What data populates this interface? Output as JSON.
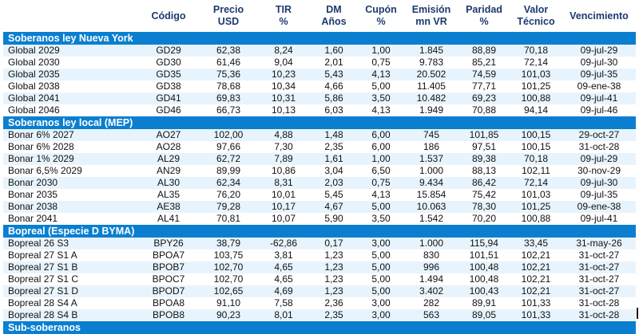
{
  "headers": [
    "",
    "Código",
    "Precio|USD",
    "TIR|%",
    "DM|Años",
    "Cupón|%",
    "Emisión|mn VR",
    "Paridad|%",
    "Valor|Técnico",
    "Vencimiento"
  ],
  "sections": [
    {
      "title": "Soberanos ley Nueva York",
      "rows": [
        [
          "Global 2029",
          "GD29",
          "62,38",
          "8,24",
          "1,60",
          "1,00",
          "1.845",
          "88,89",
          "70,18",
          "09-jul-29"
        ],
        [
          "Global 2030",
          "GD30",
          "61,46",
          "9,04",
          "2,01",
          "0,75",
          "9.783",
          "85,21",
          "72,14",
          "09-jul-30"
        ],
        [
          "Global 2035",
          "GD35",
          "75,36",
          "10,23",
          "5,43",
          "4,13",
          "20.502",
          "74,59",
          "101,03",
          "09-jul-35"
        ],
        [
          "Global 2038",
          "GD38",
          "78,68",
          "10,34",
          "4,66",
          "5,00",
          "11.405",
          "77,71",
          "101,25",
          "09-ene-38"
        ],
        [
          "Global 2041",
          "GD41",
          "69,83",
          "10,31",
          "5,86",
          "3,50",
          "10.482",
          "69,23",
          "100,88",
          "09-jul-41"
        ],
        [
          "Global 2046",
          "GD46",
          "66,73",
          "10,13",
          "6,03",
          "4,13",
          "1.949",
          "70,88",
          "94,14",
          "09-jul-46"
        ]
      ]
    },
    {
      "title": "Soberanos ley local (MEP)",
      "rows": [
        [
          "Bonar 6% 2027",
          "AO27",
          "102,00",
          "4,88",
          "1,48",
          "6,00",
          "745",
          "101,85",
          "100,15",
          "29-oct-27"
        ],
        [
          "Bonar 6% 2028",
          "AO28",
          "97,66",
          "7,30",
          "2,35",
          "6,00",
          "186",
          "97,51",
          "100,15",
          "31-oct-28"
        ],
        [
          "Bonar 1% 2029",
          "AL29",
          "62,72",
          "7,89",
          "1,61",
          "1,00",
          "1.537",
          "89,38",
          "70,18",
          "09-jul-29"
        ],
        [
          "Bonar 6,5% 2029",
          "AN29",
          "89,99",
          "10,86",
          "3,04",
          "6,50",
          "1.000",
          "88,13",
          "102,11",
          "30-nov-29"
        ],
        [
          "Bonar 2030",
          "AL30",
          "62,34",
          "8,31",
          "2,03",
          "0,75",
          "9.434",
          "86,42",
          "72,14",
          "09-jul-30"
        ],
        [
          "Bonar 2035",
          "AL35",
          "76,20",
          "10,01",
          "5,45",
          "4,13",
          "15.854",
          "75,42",
          "101,03",
          "09-jul-35"
        ],
        [
          "Bonar 2038",
          "AE38",
          "79,28",
          "10,17",
          "4,67",
          "5,00",
          "10.063",
          "78,30",
          "101,25",
          "09-ene-38"
        ],
        [
          "Bonar 2041",
          "AL41",
          "70,81",
          "10,07",
          "5,90",
          "3,50",
          "1.542",
          "70,20",
          "100,88",
          "09-jul-41"
        ]
      ]
    },
    {
      "title": "Bopreal (Especie D BYMA)",
      "rows": [
        [
          "Bopreal 26 S3",
          "BPY26",
          "38,79",
          "-62,86",
          "0,17",
          "3,00",
          "1.000",
          "115,94",
          "33,45",
          "31-may-26"
        ],
        [
          "Bopreal 27 S1 A",
          "BPOA7",
          "103,75",
          "3,81",
          "1,23",
          "5,00",
          "830",
          "101,51",
          "102,21",
          "31-oct-27"
        ],
        [
          "Bopreal 27 S1 B",
          "BPOB7",
          "102,70",
          "4,65",
          "1,23",
          "5,00",
          "996",
          "100,48",
          "102,21",
          "31-oct-27"
        ],
        [
          "Bopreal 27 S1 C",
          "BPOC7",
          "102,70",
          "4,65",
          "1,23",
          "5,00",
          "1.494",
          "100,48",
          "102,21",
          "31-oct-27"
        ],
        [
          "Bopreal 27 S1 D",
          "BPOD7",
          "102,65",
          "4,69",
          "1,23",
          "5,00",
          "3.402",
          "100,43",
          "102,21",
          "31-oct-27"
        ],
        [
          "Bopreal 28 S4 A",
          "BPOA8",
          "91,10",
          "7,58",
          "2,36",
          "3,00",
          "282",
          "89,91",
          "101,33",
          "31-oct-28"
        ],
        [
          "Bopreal 28 S4 B",
          "BPOB8",
          "90,23",
          "8,01",
          "2,35",
          "3,00",
          "563",
          "89,05",
          "101,33",
          "31-oct-28"
        ]
      ]
    },
    {
      "title": "Sub-soberanos",
      "rows": []
    }
  ]
}
